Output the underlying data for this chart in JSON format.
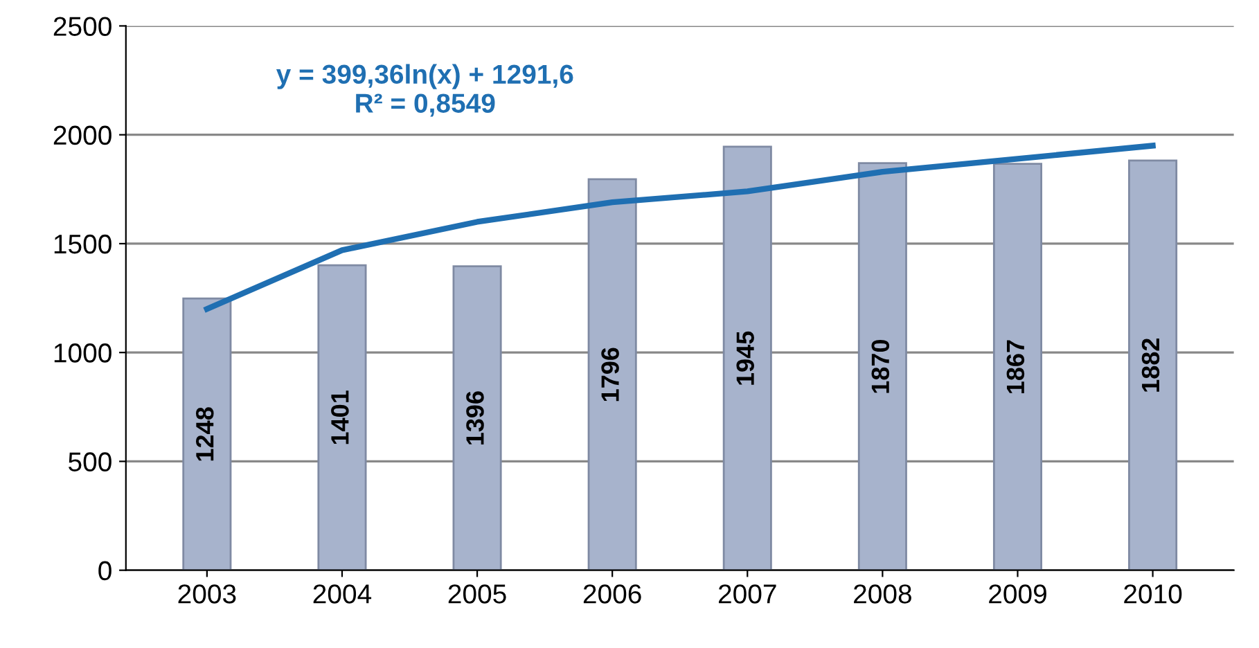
{
  "chart_data": {
    "type": "bar",
    "categories": [
      "2003",
      "2004",
      "2005",
      "2006",
      "2007",
      "2008",
      "2009",
      "2010"
    ],
    "series": [
      {
        "color": "#a7b3cc",
        "values": [
          1248,
          1401,
          1396,
          1796,
          1945,
          1870,
          1867,
          1882
        ],
        "value_labels": [
          "1248",
          "1401",
          "1396",
          "1796",
          "1945",
          "1870",
          "1867",
          "1882"
        ]
      },
      {
        "type": "line",
        "color": "#1f6fb2",
        "values": [
          1200,
          1470,
          1600,
          1690,
          1740,
          1830,
          1890,
          1950
        ]
      }
    ],
    "ylim": [
      0,
      2500
    ],
    "yticks": [
      0,
      500,
      1000,
      1500,
      2000,
      2500
    ],
    "grid": "y",
    "legend": false,
    "annotations": [
      "y = 399,36ln(x) + 1291,6\nR² = 0,8549"
    ]
  }
}
